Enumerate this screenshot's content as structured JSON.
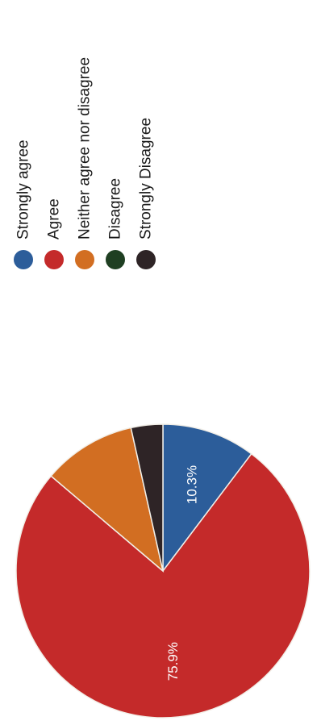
{
  "chart_data": {
    "type": "pie",
    "title": "",
    "orientation": "rotated-90-clockwise",
    "slices": [
      {
        "label": "Strongly agree",
        "value": 10.3,
        "color": "#2c5d9a",
        "data_label": "10.3%"
      },
      {
        "label": "Agree",
        "value": 75.9,
        "color": "#c42a2a",
        "data_label": "75.9%"
      },
      {
        "label": "Neither agree nor disagree",
        "value": 10.3,
        "color": "#d26e22",
        "data_label": ""
      },
      {
        "label": "Disagree",
        "value": 0.0,
        "color": "#1f3f22",
        "data_label": ""
      },
      {
        "label": "Strongly Disagree",
        "value": 3.5,
        "color": "#2e2426",
        "data_label": ""
      }
    ],
    "legend": {
      "placement": "right",
      "items": [
        {
          "label": "Strongly agree",
          "color": "#2c5d9a"
        },
        {
          "label": "Agree",
          "color": "#c42a2a"
        },
        {
          "label": "Neither agree nor disagree",
          "color": "#d26e22"
        },
        {
          "label": "Disagree",
          "color": "#1f3f22"
        },
        {
          "label": "Strongly Disagree",
          "color": "#2e2426"
        }
      ]
    }
  }
}
